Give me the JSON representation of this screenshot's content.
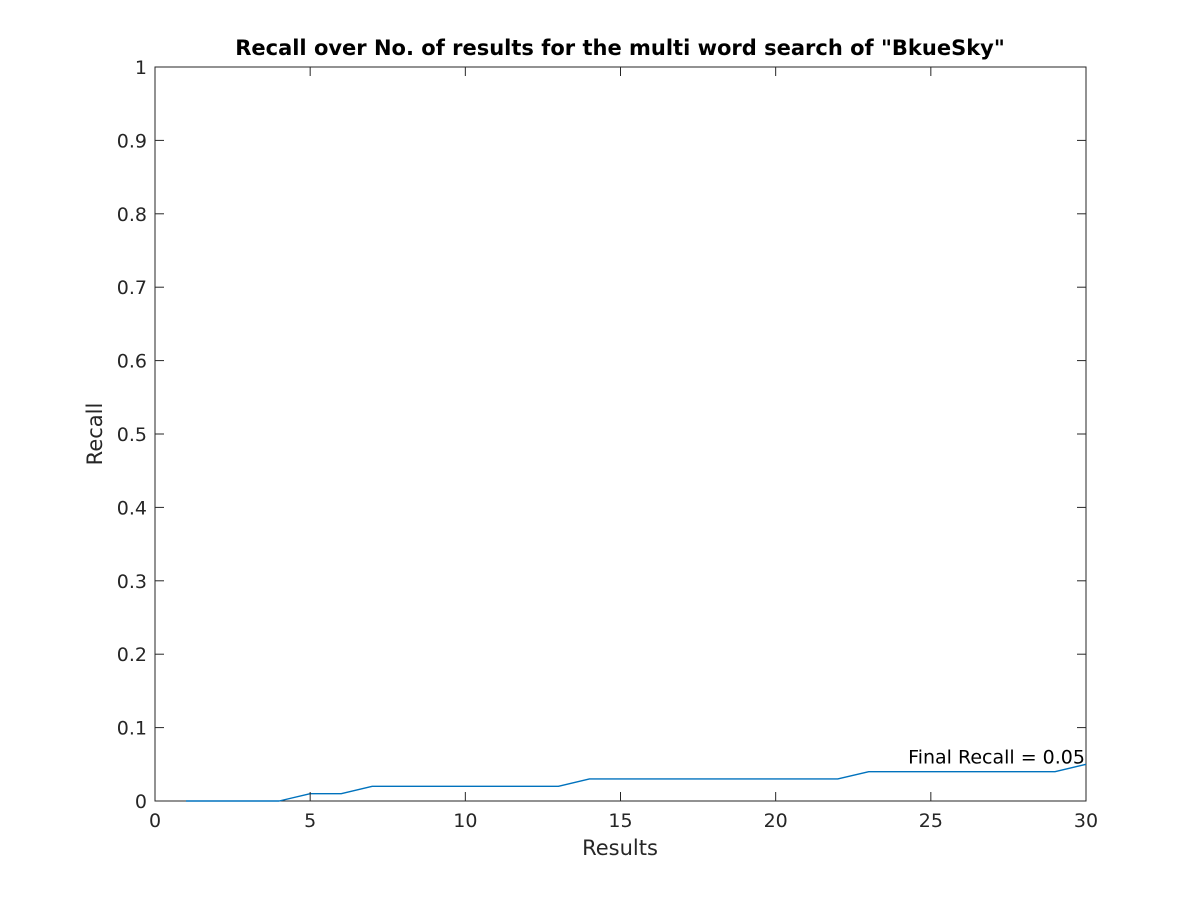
{
  "chart_data": {
    "type": "line",
    "title": "Recall over No. of results for the multi word search of \"BkueSky\"",
    "xlabel": "Results",
    "ylabel": "Recall",
    "xlim": [
      0,
      30
    ],
    "ylim": [
      0,
      1
    ],
    "xticks": [
      0,
      5,
      10,
      15,
      20,
      25,
      30
    ],
    "yticks": [
      0,
      0.1,
      0.2,
      0.3,
      0.4,
      0.5,
      0.6,
      0.7,
      0.8,
      0.9,
      1
    ],
    "grid": false,
    "series": [
      {
        "color": "#0072BD",
        "x": [
          1,
          2,
          3,
          4,
          5,
          6,
          7,
          8,
          9,
          10,
          11,
          12,
          13,
          14,
          15,
          16,
          17,
          18,
          19,
          20,
          21,
          22,
          23,
          24,
          25,
          26,
          27,
          28,
          29,
          30
        ],
        "y": [
          0,
          0,
          0,
          0,
          0.01,
          0.01,
          0.02,
          0.02,
          0.02,
          0.02,
          0.02,
          0.02,
          0.02,
          0.03,
          0.03,
          0.03,
          0.03,
          0.03,
          0.03,
          0.03,
          0.03,
          0.03,
          0.04,
          0.04,
          0.04,
          0.04,
          0.04,
          0.04,
          0.04,
          0.05
        ]
      }
    ],
    "annotations": [
      {
        "text": "Final Recall = 0.05",
        "x": 30,
        "y": 0.05
      }
    ]
  }
}
